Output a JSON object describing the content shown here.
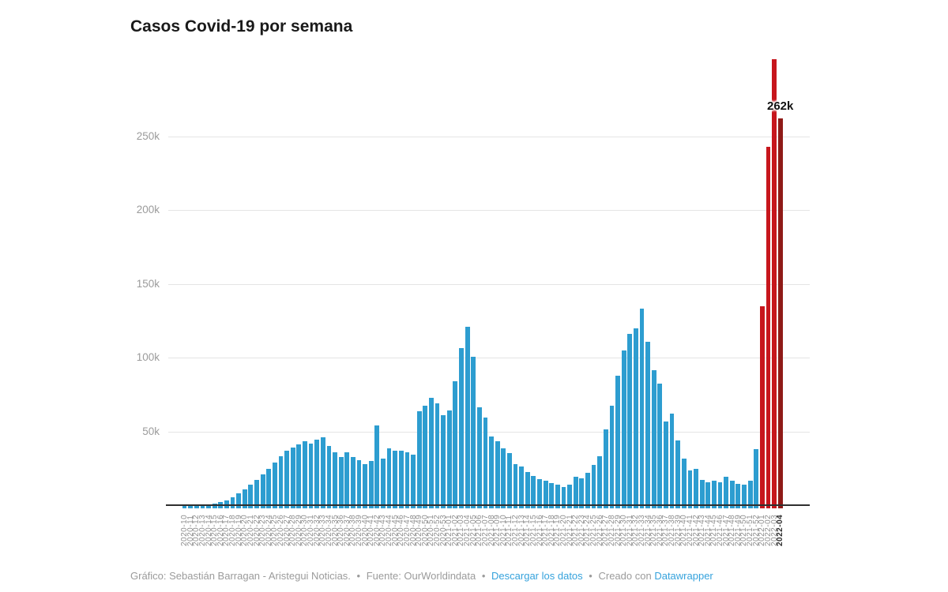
{
  "title": "Casos Covid-19 por semana",
  "footer": {
    "credit": "Gráfico: Sebastián Barragan - Aristegui Noticias.",
    "separator": "•",
    "source": "Fuente: OurWorldindata",
    "download_link": "Descargar los datos",
    "created": "Creado con",
    "tool_link": "Datawrapper"
  },
  "colors": {
    "bar_default": "#2d9dd0",
    "bar_highlight": "#c7161d",
    "bar_highlight_dark": "#8f1a17",
    "gridline": "#e4e4e4",
    "baseline": "#2f2f2f",
    "axis_text": "#9b9b9b",
    "title_text": "#1a1a1a",
    "link": "#35a2dc"
  },
  "chart_data": {
    "type": "bar",
    "title": "Casos Covid-19 por semana",
    "xlabel": "",
    "ylabel": "",
    "unit": "k (miles de casos)",
    "ylim": [
      0,
      310
    ],
    "grid": "horizontal",
    "legend": "none",
    "y_ticks": [
      {
        "label": "50k",
        "value": 50
      },
      {
        "label": "100k",
        "value": 100
      },
      {
        "label": "150k",
        "value": 150
      },
      {
        "label": "200k",
        "value": 200
      },
      {
        "label": "250k",
        "value": 250
      }
    ],
    "categories": [
      "2020-10",
      "2020-11",
      "2020-12",
      "2020-13",
      "2020-14",
      "2020-15",
      "2020-16",
      "2020-17",
      "2020-18",
      "2020-19",
      "2020-20",
      "2020-21",
      "2020-22",
      "2020-23",
      "2020-24",
      "2020-25",
      "2020-26",
      "2020-27",
      "2020-28",
      "2020-29",
      "2020-30",
      "2020-31",
      "2020-32",
      "2020-33",
      "2020-34",
      "2020-35",
      "2020-36",
      "2020-37",
      "2020-38",
      "2020-39",
      "2020-40",
      "2020-41",
      "2020-42",
      "2020-43",
      "2020-44",
      "2020-45",
      "2020-46",
      "2020-47",
      "2020-48",
      "2020-49",
      "2020-50",
      "2020-51",
      "2020-52",
      "2020-53",
      "2021-01",
      "2021-02",
      "2021-03",
      "2021-04",
      "2021-05",
      "2021-06",
      "2021-07",
      "2021-08",
      "2021-09",
      "2021-10",
      "2021-11",
      "2021-12",
      "2021-13",
      "2021-14",
      "2021-15",
      "2021-16",
      "2021-17",
      "2021-18",
      "2021-19",
      "2021-20",
      "2021-21",
      "2021-22",
      "2021-23",
      "2021-24",
      "2021-25",
      "2021-26",
      "2021-27",
      "2021-28",
      "2021-29",
      "2021-30",
      "2021-31",
      "2021-32",
      "2021-33",
      "2021-34",
      "2021-35",
      "2021-36",
      "2021-37",
      "2021-38",
      "2021-39",
      "2021-40",
      "2021-41",
      "2021-42",
      "2021-43",
      "2021-44",
      "2021-45",
      "2021-46",
      "2021-47",
      "2021-48",
      "2021-49",
      "2021-50",
      "2021-51",
      "2021-52",
      "2022-01",
      "2022-02",
      "2022-03",
      "2022-04"
    ],
    "values": [
      0.1,
      0.1,
      0.3,
      0.5,
      0.8,
      1.1,
      2.1,
      3.2,
      5.3,
      8,
      10.7,
      13.9,
      17.1,
      20.9,
      24.6,
      28.9,
      33,
      36.9,
      39,
      41.3,
      43.2,
      41.9,
      44.4,
      46.2,
      40,
      36,
      32.5,
      36,
      32.5,
      30.7,
      28,
      29.8,
      53.9,
      31.6,
      38.7,
      36.9,
      36.9,
      36,
      34.5,
      63.6,
      67.4,
      72.7,
      69,
      61,
      64,
      84,
      106.4,
      120.9,
      100.5,
      66.3,
      59.4,
      46.5,
      43.3,
      38.5,
      35.3,
      27.8,
      26.2,
      22.5,
      19.8,
      17.6,
      16.5,
      15.1,
      13.7,
      12.5,
      13.7,
      19.1,
      18.2,
      21.8,
      27.1,
      33.3,
      51.2,
      67.2,
      87.7,
      104.7,
      116.2,
      119.8,
      133.2,
      110.9,
      91.3,
      82.4,
      56.5,
      61.9,
      44,
      31.6,
      23.5,
      24.4,
      17.3,
      15.5,
      16.4,
      15.5,
      19.1,
      16.4,
      14.6,
      13.7,
      16.4,
      38.1,
      135,
      243,
      302,
      262
    ],
    "highlighted_categories": [
      "2022-01",
      "2022-02",
      "2022-03"
    ],
    "highlighted_dark_categories": [
      "2022-04"
    ],
    "bold_x_label": "2022-04",
    "annotations": [
      {
        "text": "262k",
        "category": "2022-04",
        "value": 262
      }
    ]
  }
}
